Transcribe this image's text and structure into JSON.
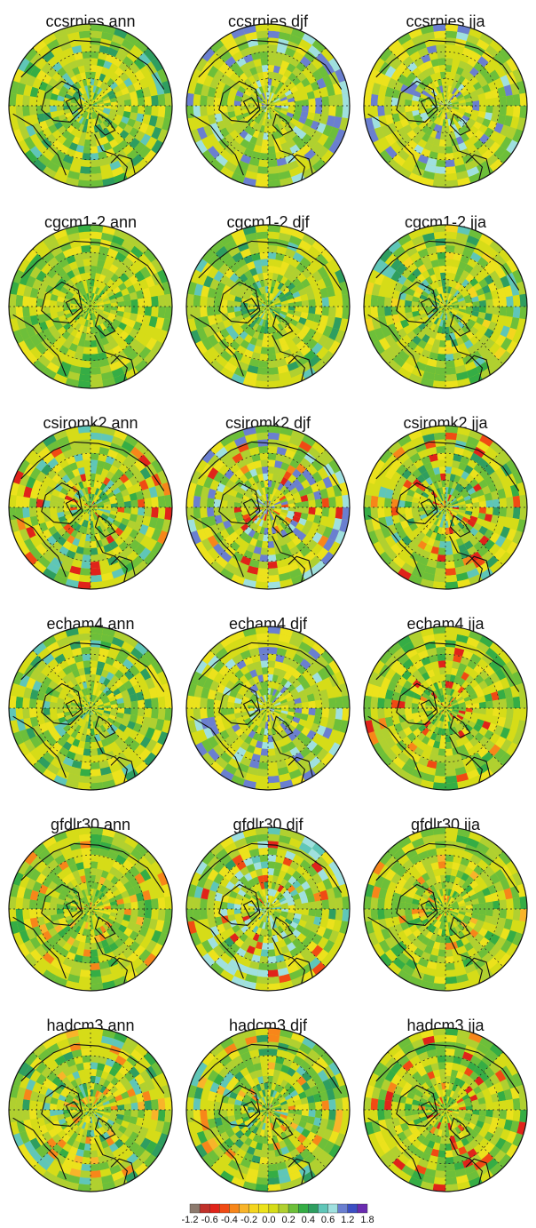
{
  "chart_data": {
    "type": "heatmap",
    "projection": "north polar stereographic",
    "grid": true,
    "seasons": [
      "ann",
      "djf",
      "jja"
    ],
    "models": [
      "ccsrnies",
      "cgcm1-2",
      "csiromk2",
      "echam4",
      "gfdlr30",
      "hadcm3"
    ],
    "panels": [
      {
        "title": "ccsrnies ann",
        "dominant_range": [
          0.2,
          0.6
        ]
      },
      {
        "title": "ccsrnies djf",
        "dominant_range": [
          0.2,
          1.2
        ]
      },
      {
        "title": "ccsrnies jja",
        "dominant_range": [
          0.2,
          1.2
        ]
      },
      {
        "title": "cgcm1-2 ann",
        "dominant_range": [
          0.0,
          0.4
        ]
      },
      {
        "title": "cgcm1-2 djf",
        "dominant_range": [
          0.0,
          0.6
        ]
      },
      {
        "title": "cgcm1-2 jja",
        "dominant_range": [
          -0.2,
          0.6
        ]
      },
      {
        "title": "csiromk2 ann",
        "dominant_range": [
          -0.6,
          0.6
        ]
      },
      {
        "title": "csiromk2 djf",
        "dominant_range": [
          -0.6,
          1.2
        ]
      },
      {
        "title": "csiromk2 jja",
        "dominant_range": [
          -0.6,
          0.6
        ]
      },
      {
        "title": "echam4 ann",
        "dominant_range": [
          0.0,
          0.6
        ]
      },
      {
        "title": "echam4 djf",
        "dominant_range": [
          0.0,
          1.2
        ]
      },
      {
        "title": "echam4 jja",
        "dominant_range": [
          -0.6,
          0.4
        ]
      },
      {
        "title": "gfdlr30 ann",
        "dominant_range": [
          -0.4,
          0.4
        ]
      },
      {
        "title": "gfdlr30 djf",
        "dominant_range": [
          -0.6,
          0.8
        ]
      },
      {
        "title": "gfdlr30 jja",
        "dominant_range": [
          -0.4,
          0.4
        ]
      },
      {
        "title": "hadcm3 ann",
        "dominant_range": [
          -0.4,
          0.6
        ]
      },
      {
        "title": "hadcm3 djf",
        "dominant_range": [
          -0.4,
          0.6
        ]
      },
      {
        "title": "hadcm3 jja",
        "dominant_range": [
          -0.6,
          0.4
        ]
      }
    ],
    "colorbar": {
      "ticks": [
        "-1.2",
        "-0.6",
        "-0.4",
        "-0.2",
        "0.0",
        "0.2",
        "0.4",
        "0.6",
        "1.2",
        "1.8"
      ],
      "bin_edges": [
        -1.2,
        -0.9,
        -0.6,
        -0.5,
        -0.4,
        -0.3,
        -0.2,
        -0.1,
        0.0,
        0.1,
        0.2,
        0.3,
        0.4,
        0.5,
        0.6,
        0.9,
        1.2,
        1.5,
        1.8
      ],
      "colors": [
        "#8c7a6e",
        "#c0312a",
        "#e0231a",
        "#f04a14",
        "#f7861a",
        "#f8b42a",
        "#f4d51f",
        "#ece21c",
        "#d6dc18",
        "#b0d030",
        "#6dbf3a",
        "#35ad45",
        "#2e9e60",
        "#5fc6b8",
        "#9fe0df",
        "#6a7fd0",
        "#3c4fc4",
        "#6a2cb0"
      ]
    }
  }
}
